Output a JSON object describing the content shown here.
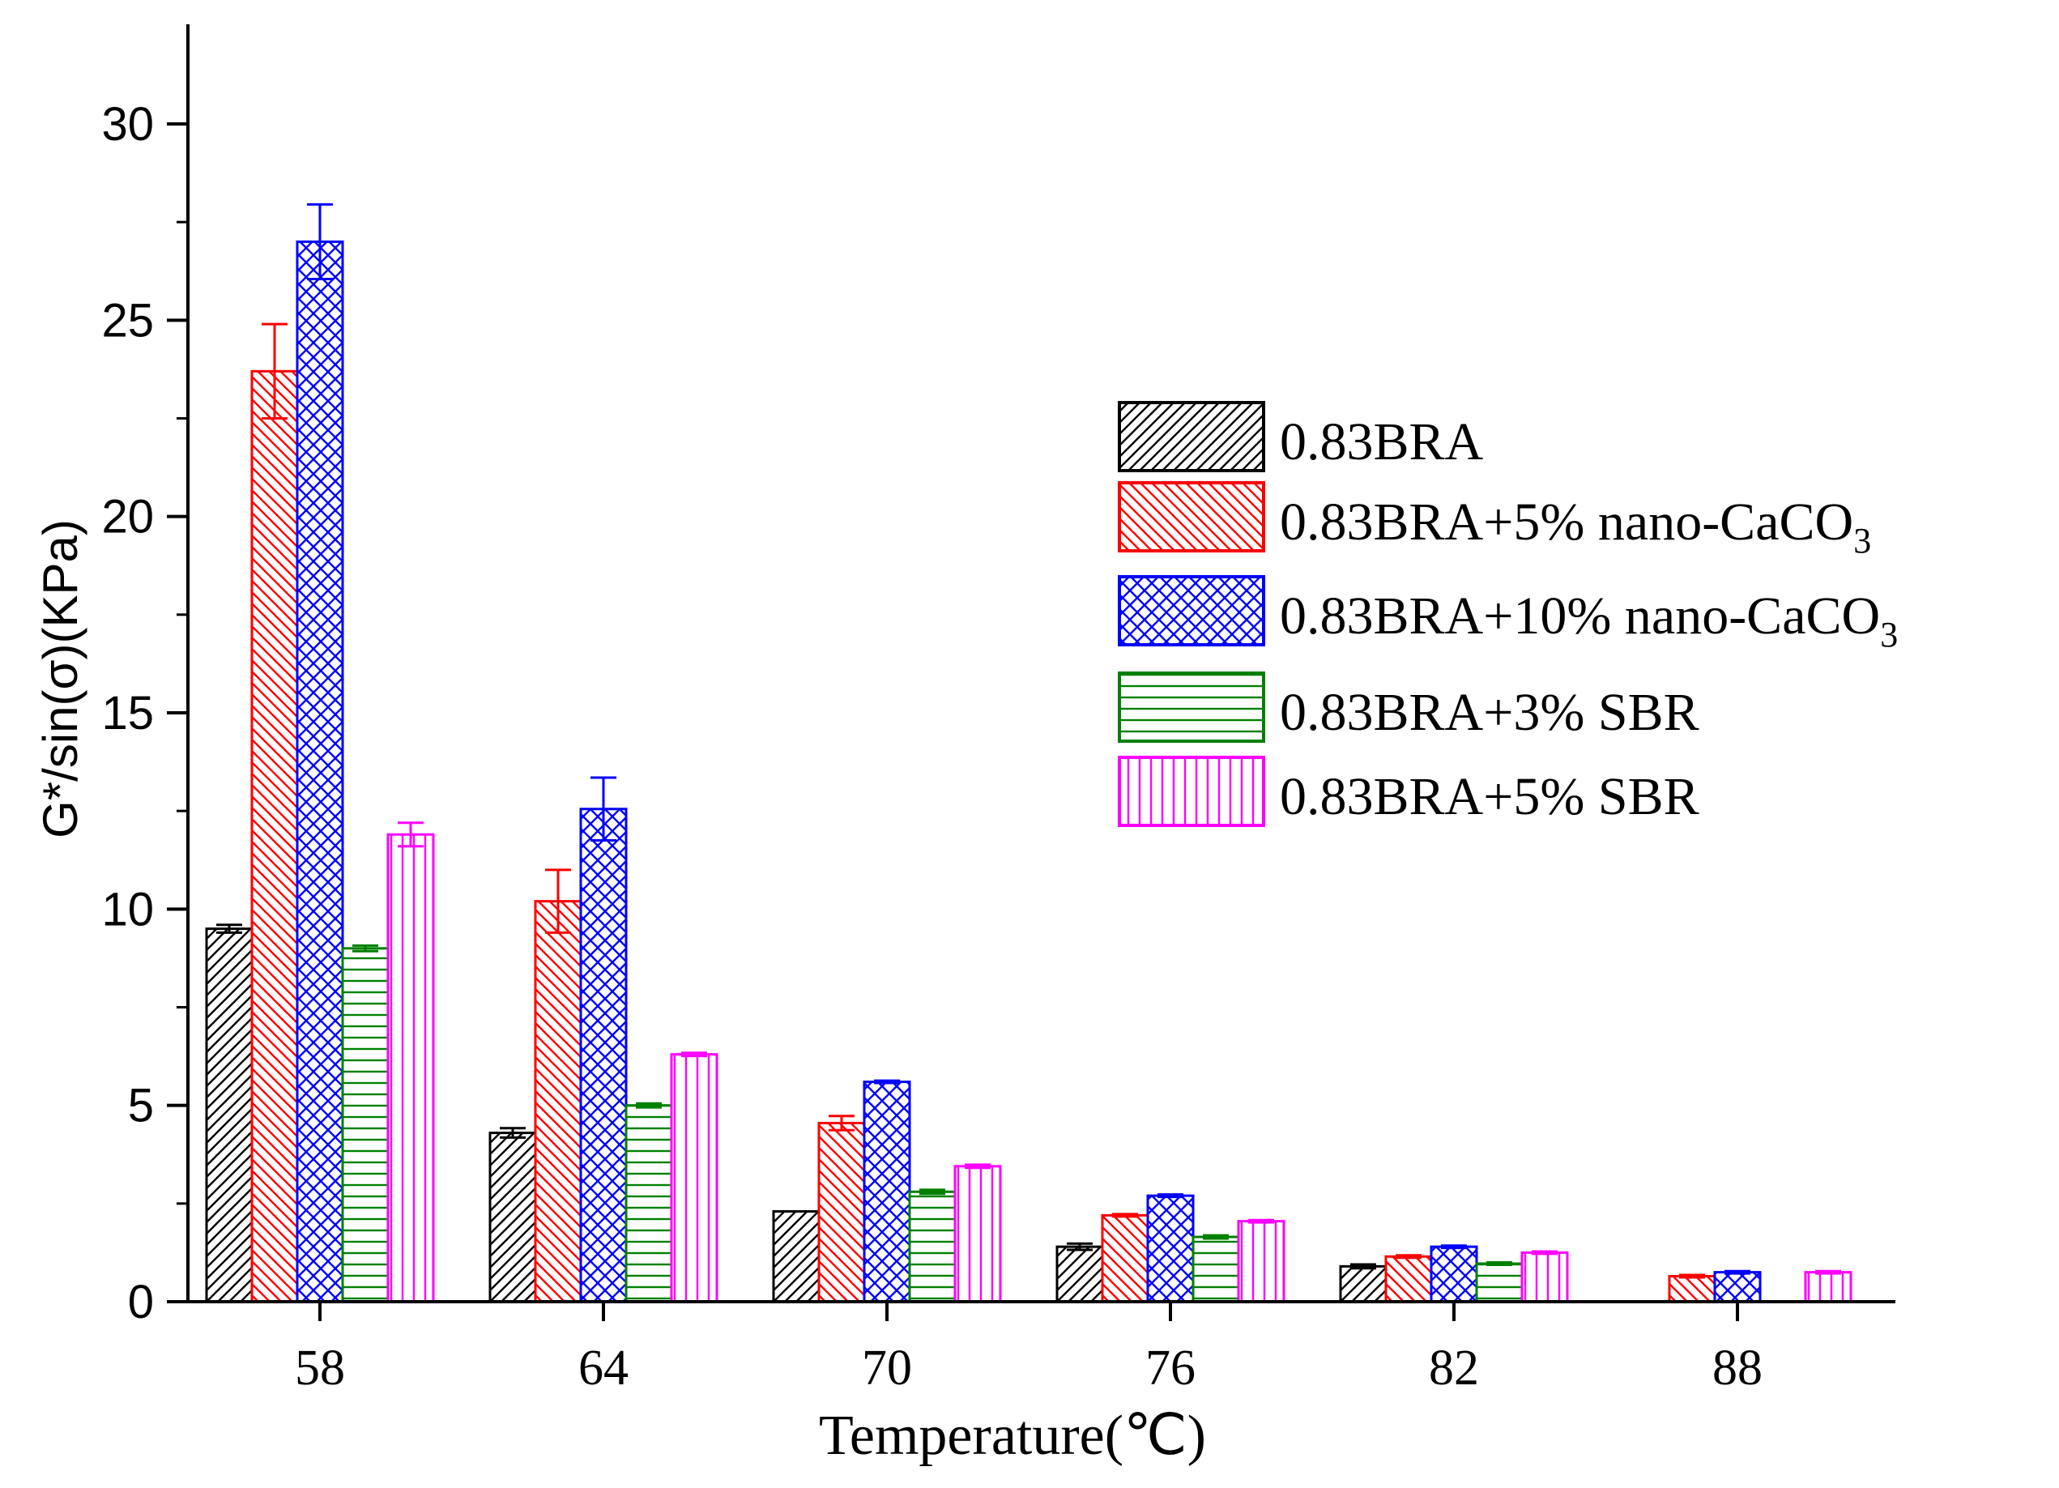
{
  "chart_data": {
    "type": "bar",
    "title": "",
    "xlabel": "Temperature(℃)",
    "ylabel": "G*/sin(σ)(KPa)",
    "ylim": [
      0,
      32
    ],
    "yticks": [
      "0",
      "5",
      "10",
      "15",
      "20",
      "25",
      "30"
    ],
    "ytick_values": [
      0,
      5,
      10,
      15,
      20,
      25,
      30
    ],
    "categories": [
      "58",
      "64",
      "70",
      "76",
      "82",
      "88"
    ],
    "legend_position": "top-right",
    "series": [
      {
        "name": "0.83BRA",
        "label_main": "0.83BRA",
        "label_sub": "",
        "color": "#000000",
        "pattern": "diag-up",
        "values": [
          9.5,
          4.3,
          2.3,
          1.4,
          0.9,
          null
        ],
        "errors": [
          0.1,
          0.12,
          0.0,
          0.08,
          0.05,
          null
        ]
      },
      {
        "name": "0.83BRA+5% nano-CaCO3",
        "label_main": "0.83BRA+5% nano-CaCO",
        "label_sub": "3",
        "color": "#ff0000",
        "pattern": "diag-down",
        "values": [
          23.7,
          10.2,
          4.55,
          2.2,
          1.15,
          0.65
        ],
        "errors": [
          1.2,
          0.8,
          0.18,
          0.03,
          0.03,
          0.03
        ]
      },
      {
        "name": "0.83BRA+10% nano-CaCO3",
        "label_main": "0.83BRA+10% nano-CaCO",
        "label_sub": "3",
        "color": "#0000ff",
        "pattern": "crosshatch",
        "values": [
          27.0,
          12.55,
          5.6,
          2.7,
          1.4,
          0.75
        ],
        "errors": [
          0.95,
          0.8,
          0.03,
          0.03,
          0.03,
          0.03
        ]
      },
      {
        "name": "0.83BRA+3% SBR",
        "label_main": "0.83BRA+3% SBR",
        "label_sub": "",
        "color": "#008000",
        "pattern": "horizontal",
        "values": [
          9.0,
          5.0,
          2.8,
          1.65,
          0.97,
          null
        ],
        "errors": [
          0.07,
          0.05,
          0.05,
          0.04,
          0.03,
          null
        ]
      },
      {
        "name": "0.83BRA+5% SBR",
        "label_main": "0.83BRA+5% SBR",
        "label_sub": "",
        "color": "#ff00ff",
        "pattern": "vertical",
        "values": [
          11.9,
          6.3,
          3.45,
          2.05,
          1.25,
          0.75
        ],
        "errors": [
          0.3,
          0.04,
          0.04,
          0.03,
          0.03,
          0.03
        ]
      }
    ]
  }
}
